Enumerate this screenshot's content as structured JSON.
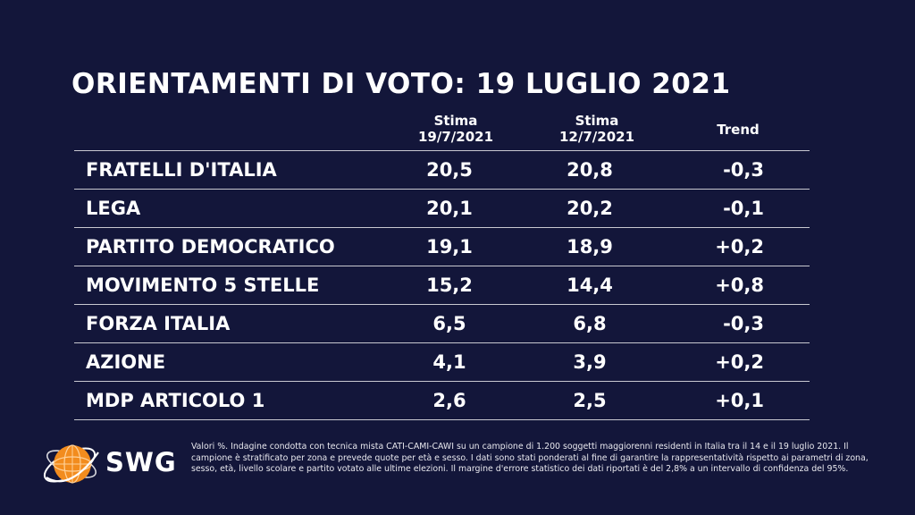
{
  "title": "ORIENTAMENTI DI VOTO: 19 LUGLIO 2021",
  "columns": {
    "current": {
      "line1": "Stima",
      "line2": "19/7/2021"
    },
    "previous": {
      "line1": "Stima",
      "line2": "12/7/2021"
    },
    "trend": "Trend"
  },
  "rows": [
    {
      "party": "FRATELLI D'ITALIA",
      "current": "20,5",
      "previous": "20,8",
      "trend": "-0,3"
    },
    {
      "party": "LEGA",
      "current": "20,1",
      "previous": "20,2",
      "trend": "-0,1"
    },
    {
      "party": "PARTITO DEMOCRATICO",
      "current": "19,1",
      "previous": "18,9",
      "trend": "+0,2"
    },
    {
      "party": "MOVIMENTO 5 STELLE",
      "current": "15,2",
      "previous": "14,4",
      "trend": "+0,8"
    },
    {
      "party": "FORZA ITALIA",
      "current": "6,5",
      "previous": "6,8",
      "trend": "-0,3"
    },
    {
      "party": "AZIONE",
      "current": "4,1",
      "previous": "3,9",
      "trend": "+0,2"
    },
    {
      "party": "MDP ARTICOLO 1",
      "current": "2,6",
      "previous": "2,5",
      "trend": "+0,1"
    }
  ],
  "logo": {
    "text": "SWG",
    "icon": "swg-globe-icon",
    "color": "#f28c1e"
  },
  "note": "Valori %. Indagine condotta con tecnica mista CATI-CAMI-CAWI su un campione di 1.200 soggetti maggiorenni residenti in Italia tra il 14 e il 19 luglio 2021. Il campione è stratificato per zona e prevede quote per età e sesso. I dati sono stati ponderati al fine di garantire la rappresentatività rispetto ai parametri di zona, sesso, età, livello scolare e partito votato alle ultime elezioni. Il margine d'errore statistico dei dati riportati è del 2,8% a un intervallo di confidenza del 95%.",
  "colors": {
    "background": "#13163a",
    "text": "#ffffff",
    "rule": "#c8c8d0"
  },
  "chart_data": {
    "type": "table",
    "title": "ORIENTAMENTI DI VOTO: 19 LUGLIO 2021",
    "columns": [
      "Stima 19/7/2021",
      "Stima 12/7/2021",
      "Trend"
    ],
    "categories": [
      "FRATELLI D'ITALIA",
      "LEGA",
      "PARTITO DEMOCRATICO",
      "MOVIMENTO 5 STELLE",
      "FORZA ITALIA",
      "AZIONE",
      "MDP ARTICOLO 1"
    ],
    "series": [
      {
        "name": "Stima 19/7/2021",
        "values": [
          20.5,
          20.1,
          19.1,
          15.2,
          6.5,
          4.1,
          2.6
        ]
      },
      {
        "name": "Stima 12/7/2021",
        "values": [
          20.8,
          20.2,
          18.9,
          14.4,
          6.8,
          3.9,
          2.5
        ]
      },
      {
        "name": "Trend",
        "values": [
          -0.3,
          -0.1,
          0.2,
          0.8,
          -0.3,
          0.2,
          0.1
        ]
      }
    ]
  }
}
